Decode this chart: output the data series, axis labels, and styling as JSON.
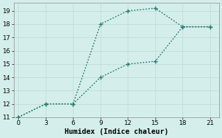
{
  "line1_x": [
    0,
    3,
    6,
    9,
    12,
    15,
    18,
    21
  ],
  "line1_y": [
    11,
    12,
    12,
    18,
    19,
    19.2,
    17.8,
    17.8
  ],
  "line2_x": [
    0,
    3,
    6,
    9,
    12,
    15,
    18,
    21
  ],
  "line2_y": [
    11,
    12,
    12,
    14,
    15,
    15.2,
    17.8,
    17.8
  ],
  "color": "#2a7d6e",
  "bg_color": "#d4eeeb",
  "grid_major_color": "#c2dbd7",
  "grid_minor_color": "#e0f2f0",
  "xlabel": "Humidex (Indice chaleur)",
  "xlim": [
    -0.5,
    22
  ],
  "ylim": [
    11,
    19.6
  ],
  "xticks": [
    0,
    3,
    6,
    9,
    12,
    15,
    18,
    21
  ],
  "yticks": [
    11,
    12,
    13,
    14,
    15,
    16,
    17,
    18,
    19
  ],
  "xlabel_fontsize": 7.5,
  "tick_fontsize": 6.5,
  "linewidth": 1.0,
  "markersize": 5
}
